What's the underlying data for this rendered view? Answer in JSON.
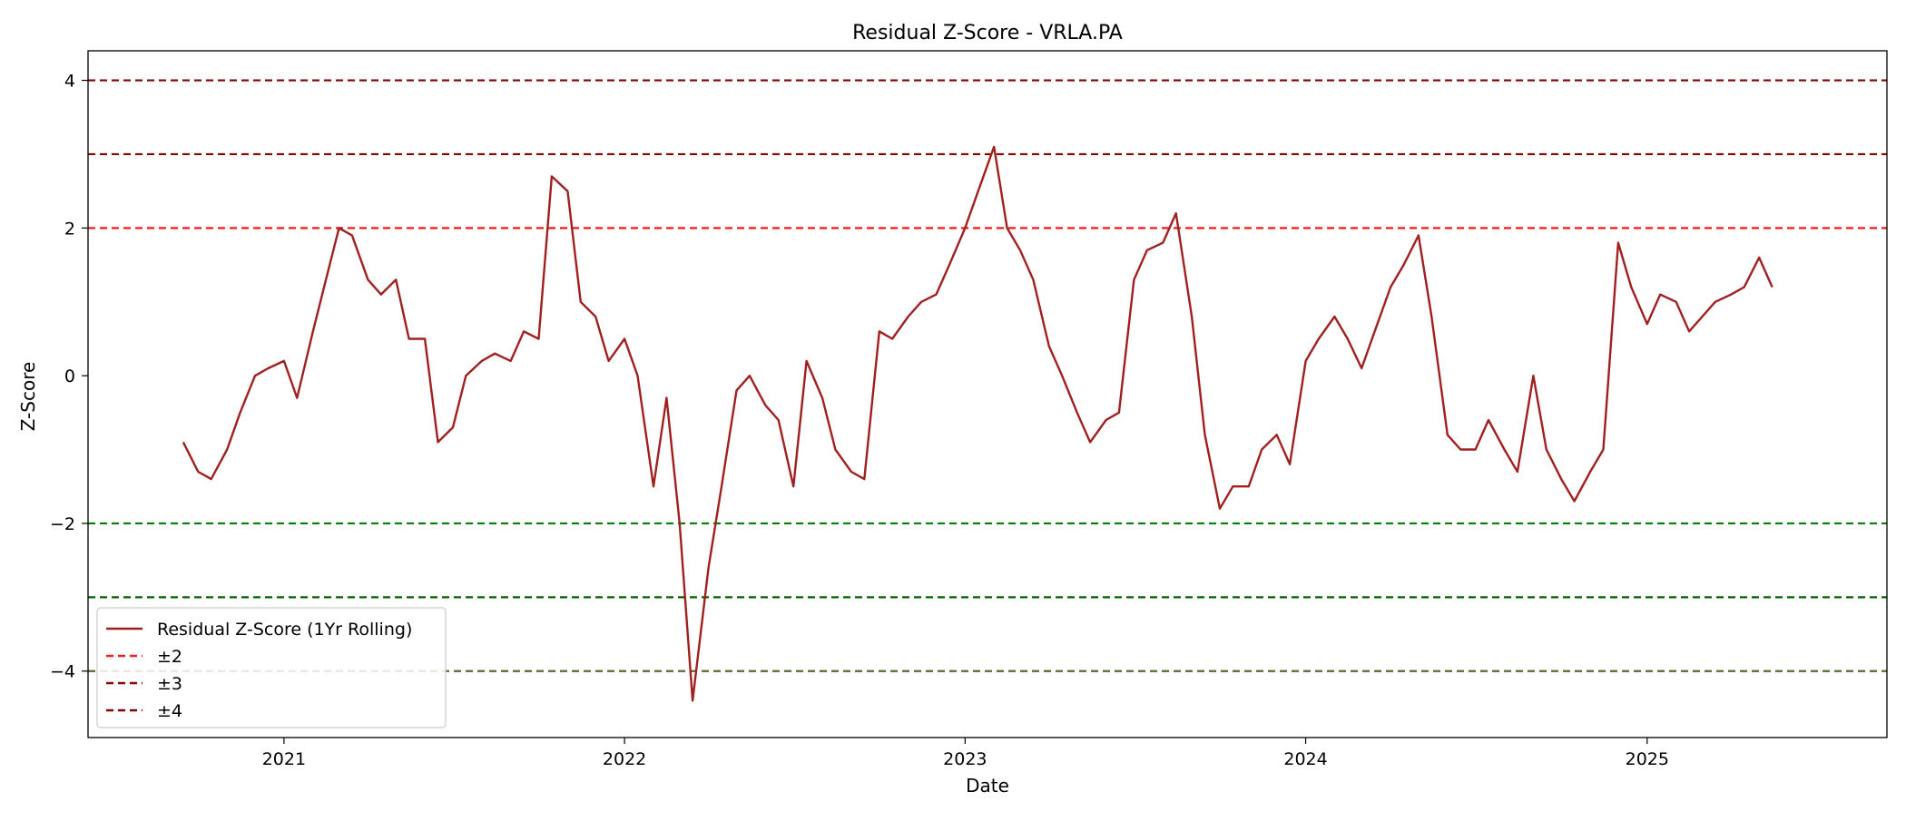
{
  "chart_data": {
    "type": "line",
    "title": "Residual Z-Score - VRLA.PA",
    "xlabel": "Date",
    "ylabel": "Z-Score",
    "xlim": [
      "2020-06-05",
      "2025-09-15"
    ],
    "ylim": [
      -4.9,
      4.4
    ],
    "x_ticks": [
      "2021",
      "2022",
      "2023",
      "2024",
      "2025"
    ],
    "y_ticks": [
      -4,
      -2,
      0,
      2,
      4
    ],
    "y_tick_labels": [
      "−4",
      "−2",
      "0",
      "2",
      "4"
    ],
    "grid": false,
    "legend_position": "lower-left",
    "series": [
      {
        "name": "Residual Z-Score (1Yr Rolling)",
        "color": "#a02020",
        "x": [
          "2020-09-15",
          "2020-10-01",
          "2020-10-15",
          "2020-11-01",
          "2020-11-15",
          "2020-12-01",
          "2020-12-15",
          "2021-01-01",
          "2021-01-15",
          "2021-02-01",
          "2021-02-15",
          "2021-03-01",
          "2021-03-15",
          "2021-04-01",
          "2021-04-15",
          "2021-05-01",
          "2021-05-15",
          "2021-06-01",
          "2021-06-15",
          "2021-07-01",
          "2021-07-15",
          "2021-08-01",
          "2021-08-15",
          "2021-09-01",
          "2021-09-15",
          "2021-10-01",
          "2021-10-15",
          "2021-11-01",
          "2021-11-15",
          "2021-12-01",
          "2021-12-15",
          "2022-01-01",
          "2022-01-15",
          "2022-02-01",
          "2022-02-15",
          "2022-03-01",
          "2022-03-15",
          "2022-04-01",
          "2022-04-15",
          "2022-05-01",
          "2022-05-15",
          "2022-06-01",
          "2022-06-15",
          "2022-07-01",
          "2022-07-15",
          "2022-08-01",
          "2022-08-15",
          "2022-09-01",
          "2022-09-15",
          "2022-10-01",
          "2022-10-15",
          "2022-11-01",
          "2022-11-15",
          "2022-12-01",
          "2022-12-15",
          "2023-01-01",
          "2023-01-15",
          "2023-02-01",
          "2023-02-15",
          "2023-03-01",
          "2023-03-15",
          "2023-04-01",
          "2023-04-15",
          "2023-05-01",
          "2023-05-15",
          "2023-06-01",
          "2023-06-15",
          "2023-07-01",
          "2023-07-15",
          "2023-08-01",
          "2023-08-15",
          "2023-09-01",
          "2023-09-15",
          "2023-10-01",
          "2023-10-15",
          "2023-11-01",
          "2023-11-15",
          "2023-12-01",
          "2023-12-15",
          "2024-01-01",
          "2024-01-15",
          "2024-02-01",
          "2024-02-15",
          "2024-03-01",
          "2024-03-15",
          "2024-04-01",
          "2024-04-15",
          "2024-05-01",
          "2024-05-15",
          "2024-06-01",
          "2024-06-15",
          "2024-07-01",
          "2024-07-15",
          "2024-08-01",
          "2024-08-15",
          "2024-09-01",
          "2024-09-15",
          "2024-10-01",
          "2024-10-15",
          "2024-11-01",
          "2024-11-15",
          "2024-12-01",
          "2024-12-15",
          "2025-01-01",
          "2025-01-15",
          "2025-02-01",
          "2025-02-15",
          "2025-03-01",
          "2025-03-15",
          "2025-04-01",
          "2025-04-15",
          "2025-05-01",
          "2025-05-15"
        ],
        "values": [
          -0.9,
          -1.3,
          -1.4,
          -1.0,
          -0.5,
          0.0,
          0.1,
          0.2,
          -0.3,
          0.6,
          1.3,
          2.0,
          1.9,
          1.3,
          1.1,
          1.3,
          0.5,
          0.5,
          -0.9,
          -0.7,
          0.0,
          0.2,
          0.3,
          0.2,
          0.6,
          0.5,
          2.7,
          2.5,
          1.0,
          0.8,
          0.2,
          0.5,
          0.0,
          -1.5,
          -0.3,
          -2.0,
          -4.4,
          -2.6,
          -1.5,
          -0.2,
          0.0,
          -0.4,
          -0.6,
          -1.5,
          0.2,
          -0.3,
          -1.0,
          -1.3,
          -1.4,
          0.6,
          0.5,
          0.8,
          1.0,
          1.1,
          1.5,
          2.0,
          2.5,
          3.1,
          2.0,
          1.7,
          1.3,
          0.4,
          0.0,
          -0.5,
          -0.9,
          -0.6,
          -0.5,
          1.3,
          1.7,
          1.8,
          2.2,
          0.8,
          -0.8,
          -1.8,
          -1.5,
          -1.5,
          -1.0,
          -0.8,
          -1.2,
          0.2,
          0.5,
          0.8,
          0.5,
          0.1,
          0.6,
          1.2,
          1.5,
          1.9,
          0.8,
          -0.8,
          -1.0,
          -1.0,
          -0.6,
          -1.0,
          -1.3,
          0.0,
          -1.0,
          -1.4,
          -1.7,
          -1.3,
          -1.0,
          1.8,
          1.2,
          0.7,
          1.1,
          1.0,
          0.6,
          0.8,
          1.0,
          1.1,
          1.2,
          1.6,
          1.2
        ]
      }
    ],
    "reference_lines": [
      {
        "label": "±2",
        "color": "#ff1a1a",
        "positive": 2,
        "negative": -2,
        "negative_color": "#008000"
      },
      {
        "label": "±3",
        "color": "#8b0000",
        "positive": 3,
        "negative": -3,
        "negative_color": "#006400"
      },
      {
        "label": "±4",
        "color": "#800000",
        "positive": 4,
        "negative": -4,
        "negative_color": "#556b2f"
      }
    ]
  }
}
